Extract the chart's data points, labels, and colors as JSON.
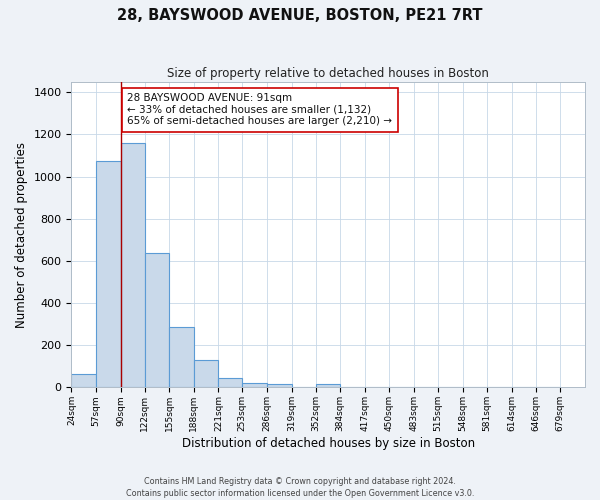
{
  "title": "28, BAYSWOOD AVENUE, BOSTON, PE21 7RT",
  "subtitle": "Size of property relative to detached houses in Boston",
  "xlabel": "Distribution of detached houses by size in Boston",
  "ylabel": "Number of detached properties",
  "footer_lines": [
    "Contains HM Land Registry data © Crown copyright and database right 2024.",
    "Contains public sector information licensed under the Open Government Licence v3.0."
  ],
  "bin_labels": [
    "24sqm",
    "57sqm",
    "90sqm",
    "122sqm",
    "155sqm",
    "188sqm",
    "221sqm",
    "253sqm",
    "286sqm",
    "319sqm",
    "352sqm",
    "384sqm",
    "417sqm",
    "450sqm",
    "483sqm",
    "515sqm",
    "548sqm",
    "581sqm",
    "614sqm",
    "646sqm",
    "679sqm"
  ],
  "bin_edges": [
    24,
    57,
    90,
    122,
    155,
    188,
    221,
    253,
    286,
    319,
    352,
    384,
    417,
    450,
    483,
    515,
    548,
    581,
    614,
    646,
    679
  ],
  "bar_values": [
    65,
    1075,
    1160,
    638,
    285,
    130,
    47,
    20,
    18,
    0,
    18,
    0,
    0,
    0,
    0,
    0,
    0,
    0,
    0,
    0
  ],
  "bar_color": "#c9d9ea",
  "bar_edge_color": "#5b9bd5",
  "property_size": 91,
  "marker_line_color": "#aa0000",
  "ylim": [
    0,
    1450
  ],
  "yticks": [
    0,
    200,
    400,
    600,
    800,
    1000,
    1200,
    1400
  ],
  "annotation_text": "28 BAYSWOOD AVENUE: 91sqm\n← 33% of detached houses are smaller (1,132)\n65% of semi-detached houses are larger (2,210) →",
  "annotation_box_color": "#ffffff",
  "annotation_box_edge_color": "#cc0000",
  "bg_color": "#eef2f7",
  "plot_bg_color": "#ffffff",
  "grid_color": "#c8d8e8"
}
